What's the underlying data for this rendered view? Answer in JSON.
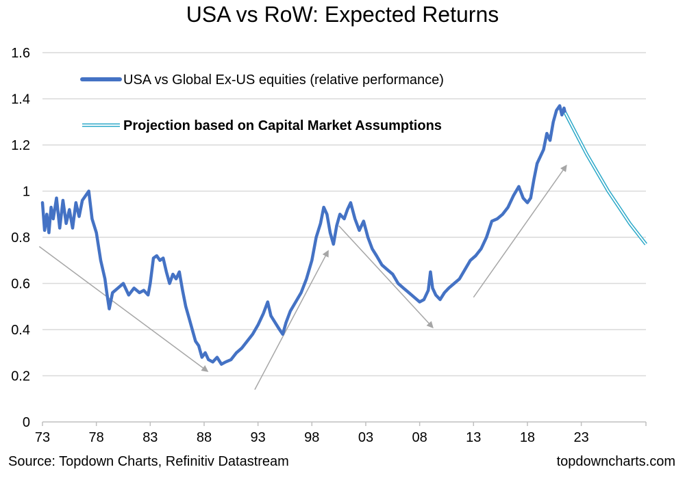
{
  "chart_data": {
    "type": "line",
    "title": "USA vs RoW: Expected Returns",
    "xlabel": "",
    "ylabel": "",
    "xlim": [
      1973,
      2029
    ],
    "ylim": [
      0,
      1.6
    ],
    "grid": true,
    "y_ticks": [
      0,
      0.2,
      0.4,
      0.6,
      0.8,
      1,
      1.2,
      1.4,
      1.6
    ],
    "y_tick_labels": [
      "0",
      "0.2",
      "0.4",
      "0.6",
      "0.8",
      "1",
      "1.2",
      "1.4",
      "1.6"
    ],
    "x_ticks": [
      1973,
      1978,
      1983,
      1988,
      1993,
      1998,
      2003,
      2008,
      2013,
      2018,
      2023
    ],
    "x_tick_labels": [
      "73",
      "78",
      "83",
      "88",
      "93",
      "98",
      "03",
      "08",
      "13",
      "18",
      "23"
    ],
    "legend_position": "top-left",
    "series": [
      {
        "name": "USA vs Global Ex-US equities (relative performance)",
        "color": "#4472C4",
        "style": "thick-solid",
        "x": [
          1973.0,
          1973.2,
          1973.4,
          1973.6,
          1973.8,
          1974.0,
          1974.3,
          1974.6,
          1974.9,
          1975.2,
          1975.5,
          1975.8,
          1976.1,
          1976.4,
          1976.7,
          1977.0,
          1977.3,
          1977.6,
          1978.0,
          1978.4,
          1978.8,
          1979.0,
          1979.2,
          1979.5,
          1980.0,
          1980.5,
          1981.0,
          1981.5,
          1982.0,
          1982.4,
          1982.8,
          1983.0,
          1983.3,
          1983.6,
          1983.9,
          1984.2,
          1984.5,
          1984.8,
          1985.1,
          1985.4,
          1985.7,
          1986.0,
          1986.3,
          1986.6,
          1986.9,
          1987.2,
          1987.5,
          1987.8,
          1988.1,
          1988.4,
          1988.8,
          1989.2,
          1989.6,
          1990.0,
          1990.5,
          1991.0,
          1991.5,
          1992.0,
          1992.5,
          1993.0,
          1993.5,
          1993.9,
          1994.2,
          1994.6,
          1995.0,
          1995.3,
          1995.6,
          1996.0,
          1996.5,
          1997.0,
          1997.5,
          1998.0,
          1998.4,
          1998.8,
          1999.1,
          1999.4,
          1999.7,
          2000.0,
          2000.3,
          2000.6,
          2001.0,
          2001.3,
          2001.6,
          2002.0,
          2002.4,
          2002.8,
          2003.2,
          2003.6,
          2004.0,
          2004.5,
          2005.0,
          2005.5,
          2006.0,
          2006.5,
          2007.0,
          2007.5,
          2008.0,
          2008.4,
          2008.8,
          2009.0,
          2009.2,
          2009.5,
          2009.9,
          2010.3,
          2010.7,
          2011.2,
          2011.7,
          2012.2,
          2012.7,
          2013.2,
          2013.7,
          2014.2,
          2014.7,
          2015.2,
          2015.7,
          2016.2,
          2016.7,
          2017.2,
          2017.6,
          2018.0,
          2018.3,
          2018.6,
          2018.9,
          2019.2,
          2019.5,
          2019.8,
          2020.1,
          2020.4,
          2020.7,
          2021.0,
          2021.2,
          2021.4,
          2021.5
        ],
        "y": [
          0.95,
          0.83,
          0.9,
          0.82,
          0.93,
          0.88,
          0.97,
          0.84,
          0.96,
          0.86,
          0.92,
          0.84,
          0.95,
          0.89,
          0.96,
          0.98,
          1.0,
          0.88,
          0.82,
          0.7,
          0.62,
          0.55,
          0.49,
          0.56,
          0.58,
          0.6,
          0.55,
          0.58,
          0.56,
          0.57,
          0.55,
          0.6,
          0.71,
          0.72,
          0.7,
          0.71,
          0.65,
          0.6,
          0.64,
          0.62,
          0.65,
          0.57,
          0.5,
          0.45,
          0.4,
          0.35,
          0.33,
          0.28,
          0.3,
          0.27,
          0.26,
          0.28,
          0.25,
          0.26,
          0.27,
          0.3,
          0.32,
          0.35,
          0.38,
          0.42,
          0.47,
          0.52,
          0.46,
          0.43,
          0.4,
          0.38,
          0.43,
          0.48,
          0.52,
          0.56,
          0.62,
          0.7,
          0.8,
          0.86,
          0.93,
          0.9,
          0.82,
          0.77,
          0.85,
          0.9,
          0.88,
          0.92,
          0.95,
          0.88,
          0.83,
          0.87,
          0.8,
          0.75,
          0.72,
          0.68,
          0.66,
          0.64,
          0.6,
          0.58,
          0.56,
          0.54,
          0.52,
          0.53,
          0.57,
          0.65,
          0.58,
          0.55,
          0.53,
          0.56,
          0.58,
          0.6,
          0.62,
          0.66,
          0.7,
          0.72,
          0.75,
          0.8,
          0.87,
          0.88,
          0.9,
          0.93,
          0.98,
          1.02,
          0.97,
          0.95,
          0.97,
          1.05,
          1.12,
          1.15,
          1.18,
          1.25,
          1.22,
          1.3,
          1.35,
          1.37,
          1.33,
          1.36,
          1.34
        ]
      },
      {
        "name": "Projection based on Capital Market Assumptions",
        "color": "#2BA8C8",
        "style": "double-line",
        "x": [
          2021.5,
          2022.5,
          2023.5,
          2024.5,
          2025.5,
          2026.5,
          2027.5,
          2028.5,
          2029.0
        ],
        "y": [
          1.34,
          1.25,
          1.16,
          1.08,
          1.0,
          0.93,
          0.86,
          0.8,
          0.77
        ]
      }
    ],
    "annotations": [
      {
        "type": "arrow",
        "from": [
          1972.7,
          0.76
        ],
        "to": [
          1988.3,
          0.22
        ]
      },
      {
        "type": "arrow",
        "from": [
          1992.7,
          0.14
        ],
        "to": [
          1999.5,
          0.74
        ]
      },
      {
        "type": "arrow",
        "from": [
          2000.5,
          0.85
        ],
        "to": [
          2009.2,
          0.41
        ]
      },
      {
        "type": "arrow",
        "from": [
          2013.0,
          0.54
        ],
        "to": [
          2021.6,
          1.11
        ]
      }
    ]
  },
  "footer": {
    "source": "Source: Topdown Charts, Refinitiv Datastream",
    "brand": "topdowncharts.com"
  }
}
